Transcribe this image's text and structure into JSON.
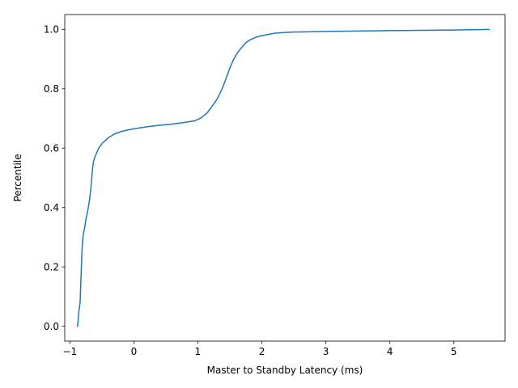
{
  "chart_data": {
    "type": "line",
    "title": "",
    "xlabel": "Master to Standby Latency (ms)",
    "ylabel": "Percentile",
    "xlim": [
      -1.08,
      5.8
    ],
    "ylim": [
      -0.05,
      1.05
    ],
    "xticks": [
      -1,
      0,
      1,
      2,
      3,
      4,
      5
    ],
    "xtick_labels": [
      "−1",
      "0",
      "1",
      "2",
      "3",
      "4",
      "5"
    ],
    "yticks": [
      0.0,
      0.2,
      0.4,
      0.6,
      0.8,
      1.0
    ],
    "ytick_labels": [
      "0.0",
      "0.2",
      "0.4",
      "0.6",
      "0.8",
      "1.0"
    ],
    "grid": false,
    "legend": "none",
    "series": [
      {
        "color": "#1f77b4",
        "x": [
          -0.88,
          -0.86,
          -0.84,
          -0.82,
          -0.81,
          -0.8,
          -0.79,
          -0.77,
          -0.75,
          -0.72,
          -0.69,
          -0.67,
          -0.65,
          -0.64,
          -0.63,
          -0.61,
          -0.58,
          -0.55,
          -0.5,
          -0.45,
          -0.4,
          -0.3,
          -0.2,
          -0.1,
          0.0,
          0.2,
          0.4,
          0.6,
          0.8,
          0.95,
          1.05,
          1.15,
          1.22,
          1.3,
          1.38,
          1.45,
          1.5,
          1.55,
          1.6,
          1.65,
          1.7,
          1.75,
          1.8,
          1.9,
          2.0,
          2.1,
          2.2,
          2.3,
          2.5,
          3.0,
          4.0,
          5.0,
          5.55
        ],
        "y": [
          0.0,
          0.05,
          0.08,
          0.2,
          0.26,
          0.29,
          0.31,
          0.33,
          0.36,
          0.39,
          0.43,
          0.47,
          0.52,
          0.54,
          0.555,
          0.57,
          0.585,
          0.6,
          0.615,
          0.625,
          0.635,
          0.648,
          0.656,
          0.661,
          0.665,
          0.672,
          0.677,
          0.681,
          0.687,
          0.692,
          0.702,
          0.72,
          0.74,
          0.765,
          0.8,
          0.84,
          0.87,
          0.895,
          0.915,
          0.93,
          0.943,
          0.955,
          0.963,
          0.973,
          0.979,
          0.983,
          0.987,
          0.989,
          0.991,
          0.993,
          0.996,
          0.998,
          1.0
        ]
      }
    ]
  }
}
